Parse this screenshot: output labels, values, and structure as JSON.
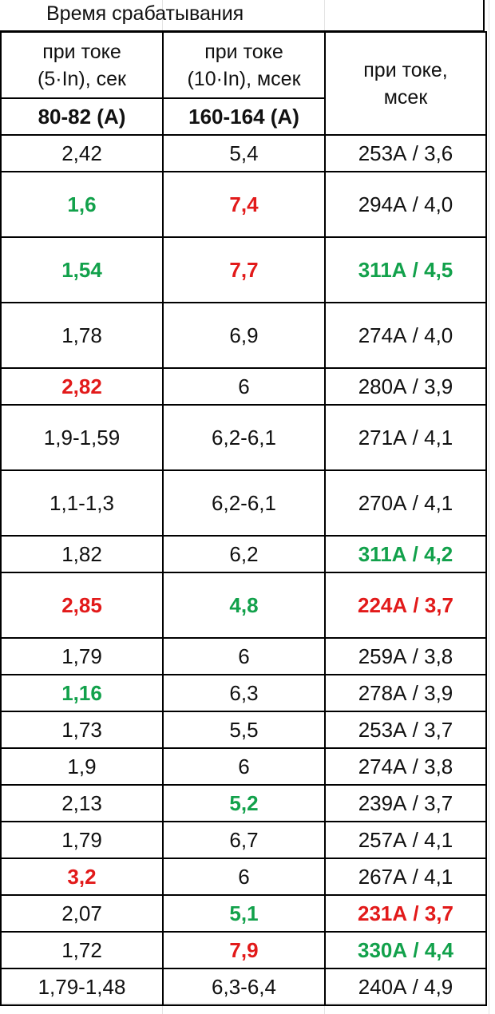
{
  "title": "Время срабатывания",
  "headers": {
    "col1_line1": "при токе",
    "col1_line2": "(5·In), сек",
    "col2_line1": "при токе",
    "col2_line2": "(10·In), мсек",
    "col3_line1": "при токе,",
    "col3_line2": "мсек",
    "col1_sub": "80-82 (А)",
    "col2_sub": "160-164 (А)"
  },
  "colors": {
    "green": "#12a14b",
    "red": "#e21a1a"
  },
  "rows": [
    {
      "c1": "2,42",
      "c1s": "",
      "c2": "5,4",
      "c2s": "",
      "c3": "253А / 3,6",
      "c3s": "",
      "h": 46
    },
    {
      "c1": "1,6",
      "c1s": "green",
      "c2": "7,4",
      "c2s": "red",
      "c3": "294А / 4,0",
      "c3s": "",
      "h": 82
    },
    {
      "c1": "1,54",
      "c1s": "green",
      "c2": "7,7",
      "c2s": "red",
      "c3": "311А / 4,5",
      "c3s": "green",
      "h": 82
    },
    {
      "c1": "1,78",
      "c1s": "",
      "c2": "6,9",
      "c2s": "",
      "c3": "274А / 4,0",
      "c3s": "",
      "h": 82
    },
    {
      "c1": "2,82",
      "c1s": "red",
      "c2": "6",
      "c2s": "",
      "c3": "280А / 3,9",
      "c3s": "",
      "h": 46
    },
    {
      "c1": "1,9-1,59",
      "c1s": "",
      "c2": "6,2-6,1",
      "c2s": "",
      "c3": "271А / 4,1",
      "c3s": "",
      "h": 82
    },
    {
      "c1": "1,1-1,3",
      "c1s": "",
      "c2": "6,2-6,1",
      "c2s": "",
      "c3": "270А / 4,1",
      "c3s": "",
      "h": 82
    },
    {
      "c1": "1,82",
      "c1s": "",
      "c2": "6,2",
      "c2s": "",
      "c3": "311А / 4,2",
      "c3s": "green",
      "h": 46
    },
    {
      "c1": "2,85",
      "c1s": "red",
      "c2": "4,8",
      "c2s": "green",
      "c3": "224А / 3,7",
      "c3s": "red",
      "h": 82
    },
    {
      "c1": "1,79",
      "c1s": "",
      "c2": "6",
      "c2s": "",
      "c3": "259А / 3,8",
      "c3s": "",
      "h": 46
    },
    {
      "c1": "1,16",
      "c1s": "green",
      "c2": "6,3",
      "c2s": "",
      "c3": "278А / 3,9",
      "c3s": "",
      "h": 46
    },
    {
      "c1": "1,73",
      "c1s": "",
      "c2": "5,5",
      "c2s": "",
      "c3": "253А / 3,7",
      "c3s": "",
      "h": 46
    },
    {
      "c1": "1,9",
      "c1s": "",
      "c2": "6",
      "c2s": "",
      "c3": "274А / 3,8",
      "c3s": "",
      "h": 46
    },
    {
      "c1": "2,13",
      "c1s": "",
      "c2": "5,2",
      "c2s": "green",
      "c3": "239А / 3,7",
      "c3s": "",
      "h": 46
    },
    {
      "c1": "1,79",
      "c1s": "",
      "c2": "6,7",
      "c2s": "",
      "c3": "257А / 4,1",
      "c3s": "",
      "h": 46
    },
    {
      "c1": "3,2",
      "c1s": "red",
      "c2": "6",
      "c2s": "",
      "c3": "267А / 4,1",
      "c3s": "",
      "h": 46
    },
    {
      "c1": "2,07",
      "c1s": "",
      "c2": "5,1",
      "c2s": "green",
      "c3": "231А / 3,7",
      "c3s": "red",
      "h": 46
    },
    {
      "c1": "1,72",
      "c1s": "",
      "c2": "7,9",
      "c2s": "red",
      "c3": "330А / 4,4",
      "c3s": "green",
      "h": 46
    },
    {
      "c1": "1,79-1,48",
      "c1s": "",
      "c2": "6,3-6,4",
      "c2s": "",
      "c3": "240А / 4,9",
      "c3s": "",
      "h": 46
    }
  ]
}
